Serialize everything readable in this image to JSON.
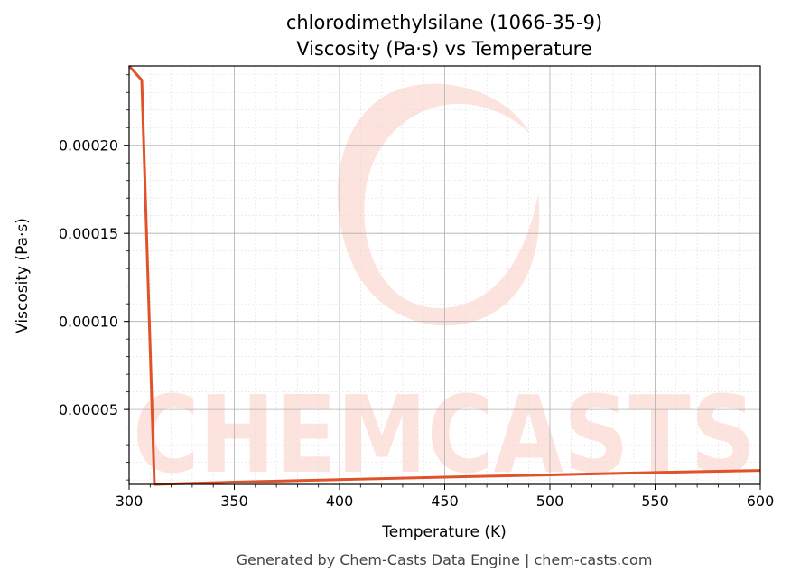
{
  "title_line1": "chlorodimethylsilane (1066-35-9)",
  "title_line2": "Viscosity (Pa·s) vs Temperature",
  "footer": "Generated by Chem-Casts Data Engine | chem-casts.com",
  "watermark": {
    "text": "CHEMCASTS",
    "color": "#fde3de"
  },
  "colors": {
    "line": "#e0522a",
    "grid_major": "#b0b0b0",
    "grid_minor": "#e0e0e0"
  },
  "chart_data": {
    "type": "line",
    "title": "chlorodimethylsilane (1066-35-9)\nViscosity (Pa·s) vs Temperature",
    "xlabel": "Temperature (K)",
    "ylabel": "Viscosity (Pa·s)",
    "xlim": [
      300,
      600
    ],
    "ylim": [
      7.5e-06,
      0.000245
    ],
    "x_ticks": [
      300,
      350,
      400,
      450,
      500,
      550,
      600
    ],
    "x_tick_labels": [
      "300",
      "350",
      "400",
      "450",
      "500",
      "550",
      "600"
    ],
    "y_ticks": [
      5e-05,
      0.0001,
      0.00015,
      0.0002
    ],
    "y_tick_labels": [
      "0.00005",
      "0.00010",
      "0.00015",
      "0.00020"
    ],
    "grid": true,
    "minor_grid": true,
    "series": [
      {
        "color": "#e0522a",
        "x": [
          300,
          306,
          312,
          350,
          400,
          450,
          500,
          550,
          600
        ],
        "y": [
          0.000245,
          0.000237,
          7.5e-06,
          8.8e-06,
          1.02e-05,
          1.16e-05,
          1.29e-05,
          1.42e-05,
          1.54e-05
        ]
      }
    ]
  }
}
